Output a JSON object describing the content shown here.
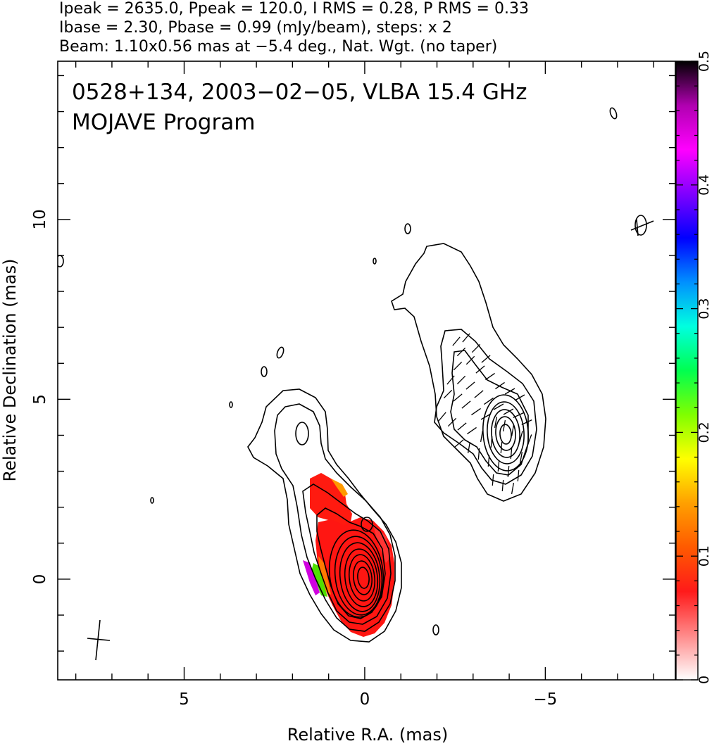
{
  "chart_data": {
    "type": "contour",
    "header_lines": [
      "Ipeak = 2635.0, Ppeak = 120.0, I RMS = 0.28, P RMS = 0.33",
      "Ibase = 2.30, Pbase = 0.99 (mJy/beam), steps: x 2",
      "Beam: 1.10x0.56 mas at −5.4 deg., Nat. Wgt. (no taper)"
    ],
    "title_line1": "0528+134, 2003−02−05, VLBA 15.4 GHz",
    "title_line2": "MOJAVE Program",
    "xlabel": "Relative R.A. (mas)",
    "ylabel": "Relative Declination (mas)",
    "xlim": [
      8.5,
      -8.6
    ],
    "ylim": [
      -2.8,
      14.4
    ],
    "x_ticks": [
      {
        "value": 5,
        "label": "5"
      },
      {
        "value": 0,
        "label": "0"
      },
      {
        "value": -5,
        "label": "−5"
      }
    ],
    "y_ticks": [
      {
        "value": 0,
        "label": "0"
      },
      {
        "value": 5,
        "label": "5"
      },
      {
        "value": 10,
        "label": "10"
      }
    ],
    "colorbar": {
      "range": [
        0,
        0.5
      ],
      "ticks": [
        {
          "value": 0,
          "label": "0"
        },
        {
          "value": 0.1,
          "label": "0.1"
        },
        {
          "value": 0.2,
          "label": "0.2"
        },
        {
          "value": 0.3,
          "label": "0.3"
        },
        {
          "value": 0.4,
          "label": "0.4"
        },
        {
          "value": 0.5,
          "label": "0.5"
        }
      ],
      "colors": [
        "#ffffff",
        "#ff8a8a",
        "#ff1a1a",
        "#ff5a00",
        "#ffa000",
        "#ffff00",
        "#80ff00",
        "#00ff50",
        "#00ffe0",
        "#0090ff",
        "#0000ff",
        "#8000ff",
        "#ff00ff",
        "#b000b0",
        "#000000"
      ]
    },
    "core_position": [
      0,
      0
    ],
    "beam": {
      "major_mas": 1.1,
      "minor_mas": 0.56,
      "pa_deg": -5.4
    },
    "contour_base_mJy_per_beam": 2.3,
    "contour_step_factor": 2,
    "peak_intensity_mJy_per_beam": 2635.0
  }
}
